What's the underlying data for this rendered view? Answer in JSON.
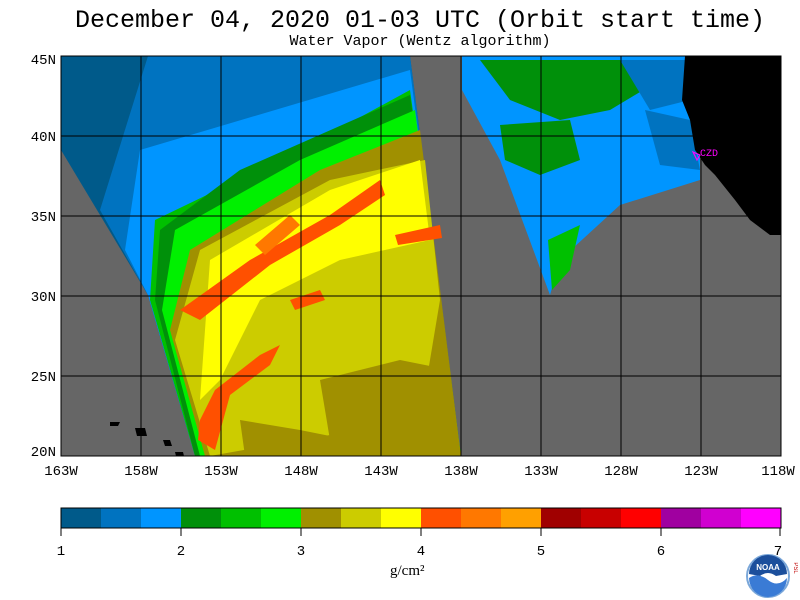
{
  "header": {
    "title": "December 04, 2020  01-03 UTC  (Orbit start time)",
    "subtitle": "Water Vapor (Wentz algorithm)"
  },
  "map": {
    "lat_labels": [
      "45N",
      "40N",
      "35N",
      "30N",
      "25N",
      "20N"
    ],
    "lon_labels": [
      "163W",
      "158W",
      "153W",
      "148W",
      "143W",
      "138W",
      "133W",
      "128W",
      "123W",
      "118W"
    ],
    "lat_range": [
      20,
      45
    ],
    "lon_range": [
      -163,
      -118
    ],
    "station_label": "CZD",
    "colors": {
      "no_data": "#666666",
      "land": "#000000",
      "station": "#ff00ff"
    }
  },
  "colorbar": {
    "tick_labels": [
      "1",
      "2",
      "3",
      "4",
      "5",
      "6",
      "7"
    ],
    "units": "g/cm²",
    "colors": [
      "#005a8a",
      "#0073c0",
      "#0095ff",
      "#00900a",
      "#00c000",
      "#00f000",
      "#a09000",
      "#cccc00",
      "#ffff00",
      "#ff5000",
      "#ff7800",
      "#ffa000",
      "#a00000",
      "#c80000",
      "#ff0000",
      "#a000a0",
      "#d000d0",
      "#ff00ff"
    ]
  },
  "logo": {
    "icon": "noaa-logo-icon",
    "text": "NOAA",
    "side_text": "PSL"
  }
}
